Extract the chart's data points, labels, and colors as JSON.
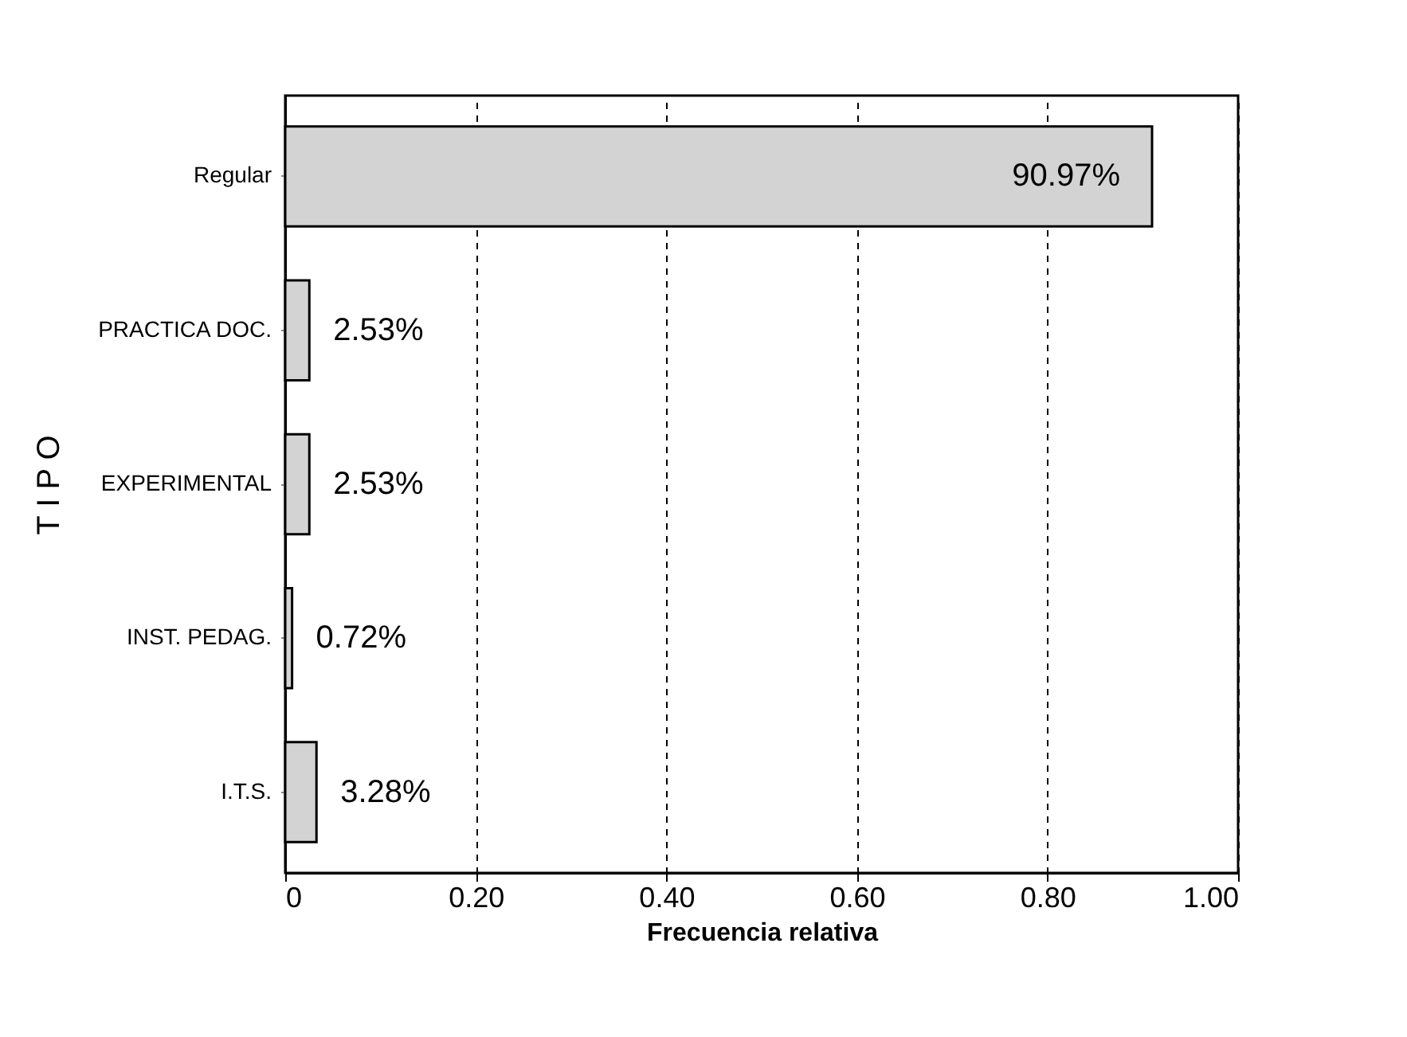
{
  "chart_data": {
    "type": "bar",
    "orientation": "horizontal",
    "categories": [
      "Regular",
      "PRACTICA DOC.",
      "EXPERIMENTAL",
      "INST. PEDAG.",
      "I.T.S."
    ],
    "values": [
      0.9097,
      0.0253,
      0.0253,
      0.0072,
      0.0328
    ],
    "value_labels": [
      "90.97%",
      "2.53%",
      "2.53%",
      "0.72%",
      "3.28%"
    ],
    "color": "#d3d3d3",
    "xlim": [
      0,
      1
    ],
    "xticks": [
      0,
      {
        "value": 0.2,
        "label": "0.20"
      },
      {
        "value": 0.4,
        "label": "0.40"
      },
      {
        "value": 0.6,
        "label": "0.60"
      },
      {
        "value": 0.8,
        "label": "0.80"
      },
      {
        "value": 1,
        "label": "1.00"
      }
    ],
    "xlabel": "Frecuencia relativa",
    "ylabel": "T I P O",
    "grid": "x"
  }
}
